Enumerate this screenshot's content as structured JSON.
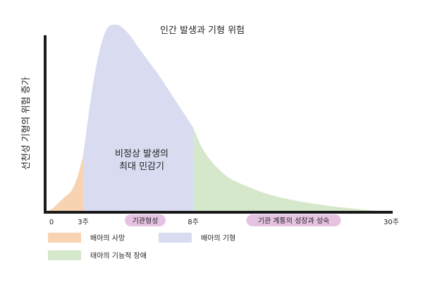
{
  "chart_data": {
    "type": "area",
    "title": "인간 발생과 기형 위험",
    "ylabel": "선천성 기형의 위험 증가",
    "xlabel": "",
    "xlim": [
      0,
      30
    ],
    "ylim": [
      0,
      1
    ],
    "grid": false,
    "x_ticks": [
      {
        "value": 0,
        "label": "0"
      },
      {
        "value": 3,
        "label": "3주"
      },
      {
        "value": 8,
        "label": "8주"
      },
      {
        "value": 30,
        "label": "30주"
      }
    ],
    "periods": [
      {
        "label": "기관형성",
        "start": 3,
        "end": 8,
        "color": "#e6c3e3"
      },
      {
        "label": "기관 계통의 성장과 성숙",
        "start": 8,
        "end": 30,
        "color": "#e6c3e3"
      }
    ],
    "curve": {
      "x": [
        0,
        0.5,
        1,
        1.5,
        2,
        2.5,
        3,
        3.5,
        4,
        4.5,
        5,
        5.5,
        6,
        6.5,
        7,
        7.5,
        8,
        9,
        10,
        11,
        12,
        13,
        14,
        15,
        16,
        17,
        18,
        19,
        20,
        21,
        22,
        23,
        24,
        25,
        26,
        27,
        28,
        29,
        30
      ],
      "y": [
        0.0,
        0.02,
        0.05,
        0.08,
        0.11,
        0.18,
        0.3,
        0.72,
        0.96,
        1.0,
        0.96,
        0.88,
        0.8,
        0.72,
        0.63,
        0.54,
        0.45,
        0.34,
        0.27,
        0.22,
        0.18,
        0.155,
        0.135,
        0.115,
        0.098,
        0.084,
        0.072,
        0.062,
        0.053,
        0.045,
        0.038,
        0.031,
        0.025,
        0.02,
        0.015,
        0.01,
        0.006,
        0.003,
        0.0
      ]
    },
    "series": [
      {
        "name": "배아의 사망",
        "x_range": [
          0,
          3
        ],
        "color": "#f7d3b2"
      },
      {
        "name": "배아의 기형",
        "x_range": [
          3,
          8
        ],
        "color": "#d9dcf0"
      },
      {
        "name": "태아의 기능적 장애",
        "x_range": [
          8,
          30
        ],
        "color": "#d6e8cb"
      }
    ],
    "annotations": [
      {
        "text_lines": [
          "비정상 발생의",
          "최대 민감기"
        ]
      }
    ],
    "legend": {
      "placement": "bottom-left"
    }
  }
}
